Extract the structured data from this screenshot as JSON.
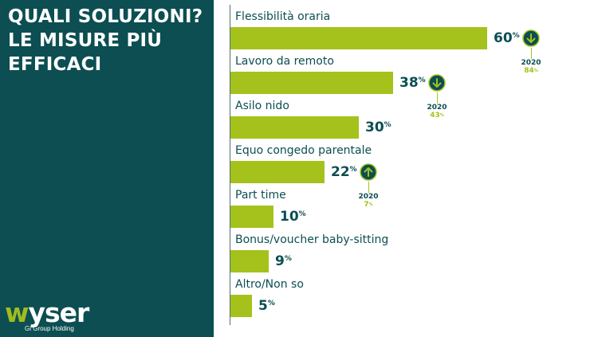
{
  "title_lines": [
    "QUALI SOLUZIONI?",
    "LE MISURE PIÙ",
    "EFFICACI"
  ],
  "logo": {
    "w": "w",
    "rest": "yser",
    "tagline": "Gi Group Holding"
  },
  "colors": {
    "panel": "#0c4e52",
    "bar": "#a4c21b",
    "text": "#0c4e52"
  },
  "chart_data": {
    "type": "bar",
    "orientation": "horizontal",
    "title": "QUALI SOLUZIONI? LE MISURE PIÙ EFFICACI",
    "unit": "%",
    "categories": [
      "Flessibilità oraria",
      "Lavoro da remoto",
      "Asilo nido",
      "Equo congedo parentale",
      "Part time",
      "Bonus/voucher baby-sitting",
      "Altro/Non so"
    ],
    "values": [
      60,
      38,
      30,
      22,
      10,
      9,
      5
    ],
    "xlim": [
      0,
      73
    ],
    "comparisons": [
      {
        "category": "Flessibilità oraria",
        "year": "2020",
        "value": 84,
        "direction": "down"
      },
      {
        "category": "Lavoro da remoto",
        "year": "2020",
        "value": 43,
        "direction": "down"
      },
      {
        "category": "Equo congedo parentale",
        "year": "2020",
        "value": 7,
        "direction": "up"
      }
    ]
  }
}
